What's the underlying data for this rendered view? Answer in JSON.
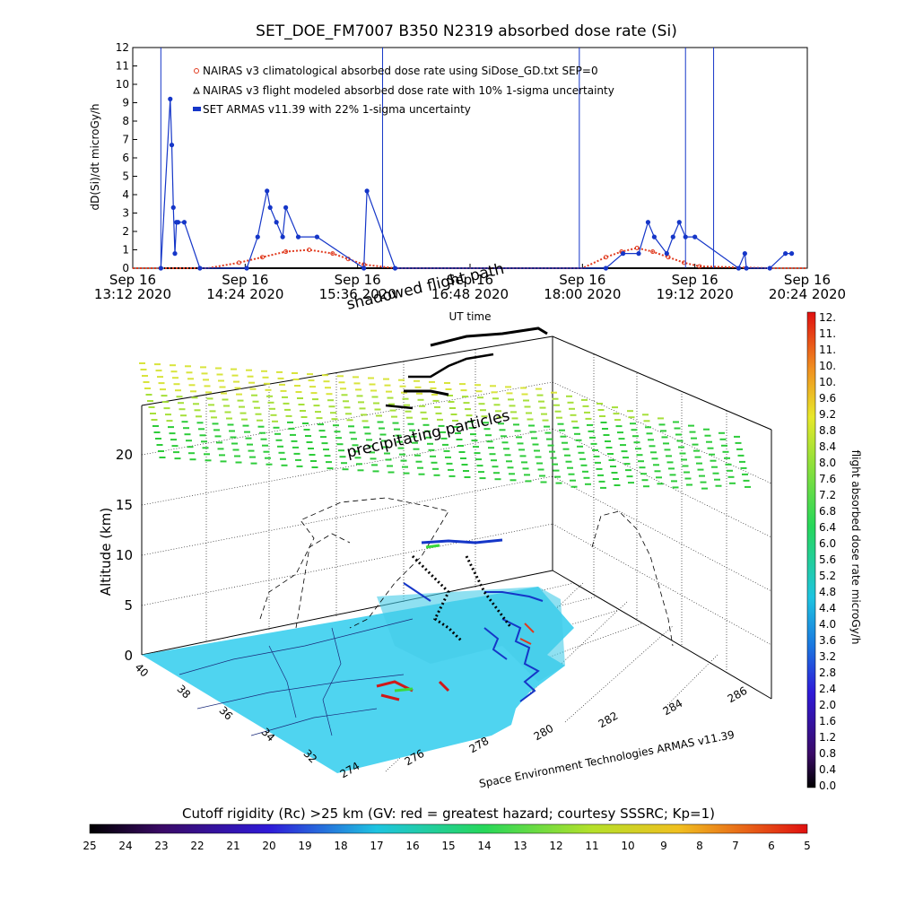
{
  "top_chart": {
    "title": "SET_DOE_FM7007   B350    N2319   absorbed dose rate (Si)",
    "ylabel": "dD(Si)/dt microGy/h",
    "xlabel": "UT time",
    "legend": [
      "NAIRAS v3 climatological absorbed dose rate using SiDose_GD.txt SEP=0",
      "NAIRAS v3 flight modeled absorbed dose rate with 10% 1-sigma uncertainty",
      "SET ARMAS v11.39 with 22% 1-sigma uncertainty"
    ],
    "y_ticks": [
      "0",
      "1",
      "2",
      "3",
      "4",
      "5",
      "6",
      "7",
      "8",
      "9",
      "10",
      "11",
      "12"
    ],
    "x_ticks": [
      {
        "l1": "Sep 16",
        "l2": "13:12 2020"
      },
      {
        "l1": "Sep 16",
        "l2": "14:24 2020"
      },
      {
        "l1": "Sep 16",
        "l2": "15:36 2020"
      },
      {
        "l1": "Sep 16",
        "l2": "16:48 2020"
      },
      {
        "l1": "Sep 16",
        "l2": "18:00 2020"
      },
      {
        "l1": "Sep 16",
        "l2": "19:12 2020"
      },
      {
        "l1": "Sep 16",
        "l2": "20:24 2020"
      }
    ]
  },
  "chart_data": [
    {
      "type": "line",
      "title": "SET_DOE_FM7007   B350    N2319   absorbed dose rate (Si)",
      "xlabel": "UT time",
      "ylabel": "dD(Si)/dt microGy/h",
      "ylim": [
        0,
        12
      ],
      "xlim": [
        "Sep 16 2020 13:12",
        "Sep 16 2020 20:24"
      ],
      "series": [
        {
          "name": "SET ARMAS v11.39 with 22% 1-sigma uncertainty",
          "color": "#1536c8",
          "x": [
            "13:30",
            "13:36",
            "13:37",
            "13:38",
            "13:39",
            "13:40",
            "13:41",
            "13:45",
            "13:55",
            "14:25",
            "14:32",
            "14:38",
            "14:40",
            "14:44",
            "14:48",
            "14:50",
            "14:58",
            "15:10",
            "15:40",
            "15:42",
            "16:00",
            "18:15",
            "18:26",
            "18:36",
            "18:42",
            "18:46",
            "18:54",
            "18:58",
            "19:02",
            "19:06",
            "19:12",
            "19:40",
            "19:44",
            "19:45",
            "20:00",
            "20:10",
            "20:14"
          ],
          "y": [
            0.0,
            9.2,
            6.7,
            3.3,
            0.8,
            2.5,
            2.5,
            2.5,
            0.0,
            0.0,
            1.7,
            4.2,
            3.3,
            2.5,
            1.7,
            3.3,
            1.7,
            1.7,
            0.0,
            4.2,
            0.0,
            0.0,
            0.8,
            0.8,
            2.5,
            1.7,
            0.8,
            1.7,
            2.5,
            1.7,
            1.7,
            0.0,
            0.8,
            0.0,
            0.0,
            0.8,
            0.8
          ]
        },
        {
          "name": "NAIRAS v3 climatological absorbed dose rate using SiDose_GD.txt SEP=0",
          "color": "#e03a1e",
          "x": [
            "13:12",
            "14:00",
            "14:20",
            "14:35",
            "14:50",
            "15:05",
            "15:20",
            "15:30",
            "15:40",
            "16:00",
            "17:00",
            "18:00",
            "18:15",
            "18:25",
            "18:35",
            "18:45",
            "18:55",
            "19:05",
            "19:15",
            "20:00",
            "20:24"
          ],
          "y": [
            0.0,
            0.0,
            0.3,
            0.6,
            0.9,
            1.0,
            0.8,
            0.5,
            0.2,
            0.0,
            0.0,
            0.0,
            0.6,
            0.9,
            1.1,
            0.9,
            0.6,
            0.3,
            0.1,
            0.0,
            0.0
          ]
        },
        {
          "name": "NAIRAS v3 flight modeled absorbed dose rate with 10% 1-sigma uncertainty",
          "color": "#000000",
          "x": [
            "13:12",
            "20:24"
          ],
          "y": [
            0.0,
            0.0
          ]
        }
      ]
    },
    {
      "type": "scatter",
      "title": "",
      "zlabel": "Altitude (km)",
      "z_ticks": [
        "0",
        "5",
        "10",
        "15",
        "20"
      ],
      "lat_ticks": [
        "40",
        "38",
        "36",
        "34",
        "32"
      ],
      "lon_ticks": [
        "274",
        "276",
        "278",
        "280",
        "282",
        "284",
        "286"
      ],
      "colorbar_label": "flight absorbed dose rate microGy/h",
      "colorbar_ticks": [
        "12.",
        "11.",
        "11.",
        "10.",
        "10.",
        "9.6",
        "9.2",
        "8.8",
        "8.4",
        "8.0",
        "7.6",
        "7.2",
        "6.8",
        "6.4",
        "6.0",
        "5.6",
        "5.2",
        "4.8",
        "4.4",
        "4.0",
        "3.6",
        "3.2",
        "2.8",
        "2.4",
        "2.0",
        "1.6",
        "1.2",
        "0.8",
        "0.4",
        "0.0"
      ]
    }
  ],
  "annotations": {
    "shadow_flight_path": "shadowed flight path",
    "precipitating": "precipitating particles",
    "credit": "Space Environment Technologies ARMAS v11.39"
  },
  "bottom_bar": {
    "title": "Cutoff rigidity (Rc) >25 km (GV: red = greatest hazard; courtesy SSSRC; Kp=1)",
    "ticks": [
      "25",
      "24",
      "23",
      "22",
      "21",
      "20",
      "19",
      "18",
      "17",
      "16",
      "15",
      "14",
      "13",
      "12",
      "11",
      "10",
      "9",
      "8",
      "7",
      "6",
      "5"
    ]
  },
  "colors": {
    "armas": "#1536c8",
    "nairas_clim": "#e03a1e",
    "map_fill": "#4fd4f0",
    "precip_low": "#2ecc3a",
    "precip_high": "#d8e43c"
  }
}
